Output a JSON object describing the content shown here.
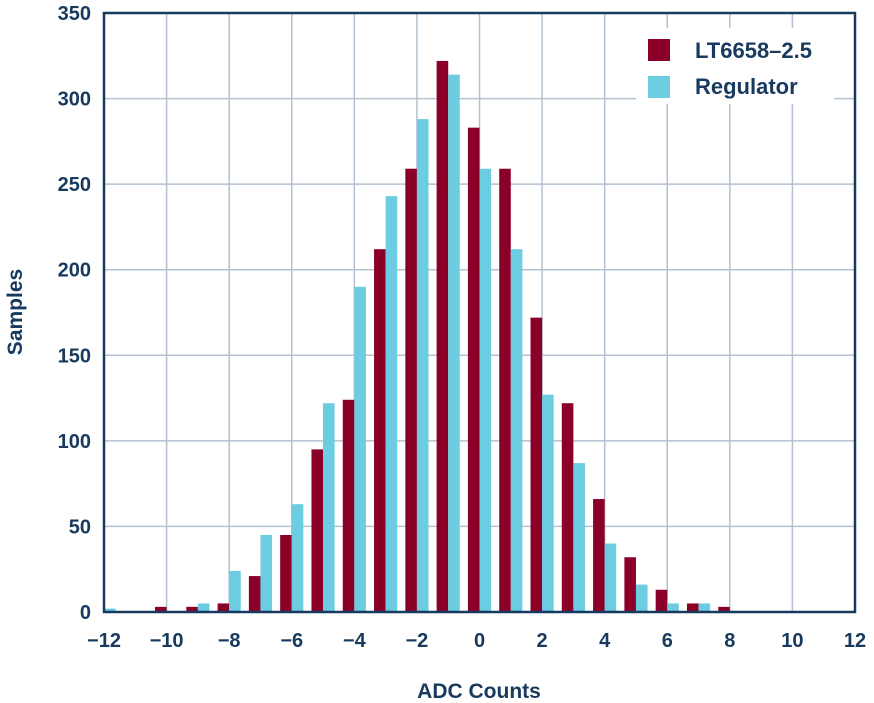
{
  "chart_data": {
    "type": "bar",
    "title": "",
    "xlabel": "ADC Counts",
    "ylabel": "Samples",
    "xlim": [
      -12,
      12
    ],
    "ylim": [
      0,
      350
    ],
    "xticks": [
      -12,
      -10,
      -8,
      -6,
      -4,
      -2,
      0,
      2,
      4,
      6,
      8,
      10,
      12
    ],
    "yticks": [
      0,
      50,
      100,
      150,
      200,
      250,
      300,
      350
    ],
    "xtick_labels": [
      "−12",
      "−10",
      "−8",
      "−6",
      "−4",
      "−2",
      "0",
      "2",
      "4",
      "6",
      "8",
      "10",
      "12"
    ],
    "ytick_labels": [
      "0",
      "50",
      "100",
      "150",
      "200",
      "250",
      "300",
      "350"
    ],
    "grid": true,
    "legend_position": "top-right",
    "x": [
      -12,
      -11,
      -10,
      -9,
      -8,
      -7,
      -6,
      -5,
      -4,
      -3,
      -2,
      -1,
      0,
      1,
      2,
      3,
      4,
      5,
      6,
      7,
      8
    ],
    "series": [
      {
        "name": "LT6658–2.5",
        "color": "#8b0029",
        "values": [
          0,
          0,
          3,
          3,
          5,
          21,
          45,
          95,
          124,
          212,
          259,
          322,
          283,
          259,
          172,
          122,
          66,
          32,
          13,
          5,
          3
        ]
      },
      {
        "name": "Regulator",
        "color": "#6ccde0",
        "values": [
          2,
          0,
          0,
          5,
          24,
          45,
          63,
          122,
          190,
          243,
          288,
          314,
          259,
          212,
          127,
          87,
          40,
          16,
          5,
          5,
          0
        ]
      }
    ]
  }
}
